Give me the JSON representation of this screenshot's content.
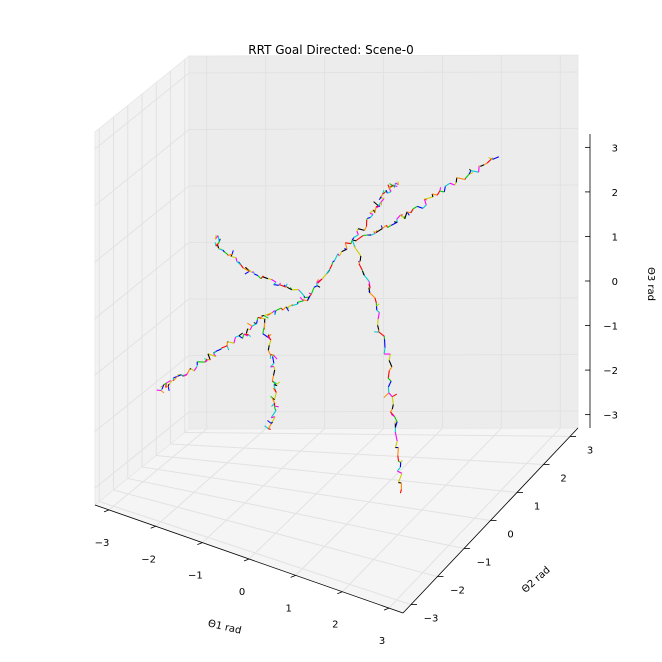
{
  "chart_data": {
    "type": "line3d",
    "title": "RRT Goal Directed: Scene-0",
    "xlabel": "Θ1 rad",
    "ylabel": "Θ2 rad",
    "zlabel": "Θ3 rad",
    "xlim": [
      -3.3,
      3.3
    ],
    "ylim": [
      -3.3,
      3.3
    ],
    "zlim": [
      -3.3,
      3.3
    ],
    "x_ticks": [
      "−3",
      "−2",
      "−1",
      "0",
      "1",
      "2",
      "3"
    ],
    "y_ticks": [
      "−3",
      "−2",
      "−1",
      "0",
      "1",
      "2",
      "3"
    ],
    "z_ticks": [
      "−3",
      "−2",
      "−1",
      "0",
      "1",
      "2",
      "3"
    ],
    "grid": true,
    "segment_colors": [
      "#ff0000",
      "#00cc00",
      "#0000ff",
      "#00cccc",
      "#ff00ff",
      "#cccc00",
      "#000000",
      "#ff8800"
    ],
    "series": [
      {
        "values": [
          [
            -0.1,
            -0.1,
            0.2
          ],
          [
            0.3,
            0.0,
            0.8
          ],
          [
            0.6,
            0.2,
            1.2
          ],
          [
            0.9,
            0.3,
            1.6
          ],
          [
            1.1,
            0.3,
            1.9
          ],
          [
            1.3,
            0.2,
            2.2
          ],
          [
            1.5,
            0.1,
            2.4
          ]
        ]
      },
      {
        "values": [
          [
            0.6,
            0.2,
            1.2
          ],
          [
            1.0,
            0.6,
            1.3
          ],
          [
            1.4,
            0.9,
            1.5
          ],
          [
            1.8,
            1.2,
            1.8
          ],
          [
            2.2,
            1.5,
            2.0
          ],
          [
            2.6,
            1.8,
            2.2
          ]
        ]
      },
      {
        "values": [
          [
            0.6,
            0.2,
            1.2
          ],
          [
            1.0,
            0.0,
            0.6
          ],
          [
            1.3,
            -0.3,
            0.1
          ],
          [
            1.6,
            -0.5,
            -0.5
          ],
          [
            1.8,
            -0.8,
            -1.2
          ],
          [
            2.0,
            -1.0,
            -1.9
          ],
          [
            2.1,
            -1.1,
            -2.5
          ]
        ]
      },
      {
        "values": [
          [
            -0.1,
            -0.1,
            0.2
          ],
          [
            -0.6,
            -0.3,
            0.4
          ],
          [
            -1.0,
            -0.5,
            0.6
          ],
          [
            -1.3,
            -0.6,
            0.8
          ],
          [
            -1.6,
            -0.7,
            1.0
          ],
          [
            -1.7,
            -0.6,
            1.2
          ]
        ]
      },
      {
        "values": [
          [
            -0.1,
            -0.1,
            0.2
          ],
          [
            -0.5,
            -0.2,
            0.0
          ],
          [
            -0.9,
            -0.4,
            -0.2
          ],
          [
            -1.2,
            -0.5,
            -0.5
          ],
          [
            -1.6,
            -0.6,
            -0.8
          ],
          [
            -2.0,
            -0.8,
            -1.1
          ],
          [
            -2.4,
            -1.0,
            -1.4
          ],
          [
            -2.7,
            -1.1,
            -1.6
          ]
        ]
      },
      {
        "values": [
          [
            -0.9,
            -0.4,
            -0.2
          ],
          [
            -0.6,
            -0.8,
            -0.5
          ],
          [
            -0.4,
            -1.1,
            -0.9
          ],
          [
            -0.3,
            -1.3,
            -1.3
          ],
          [
            -0.3,
            -1.5,
            -1.7
          ]
        ]
      }
    ]
  }
}
